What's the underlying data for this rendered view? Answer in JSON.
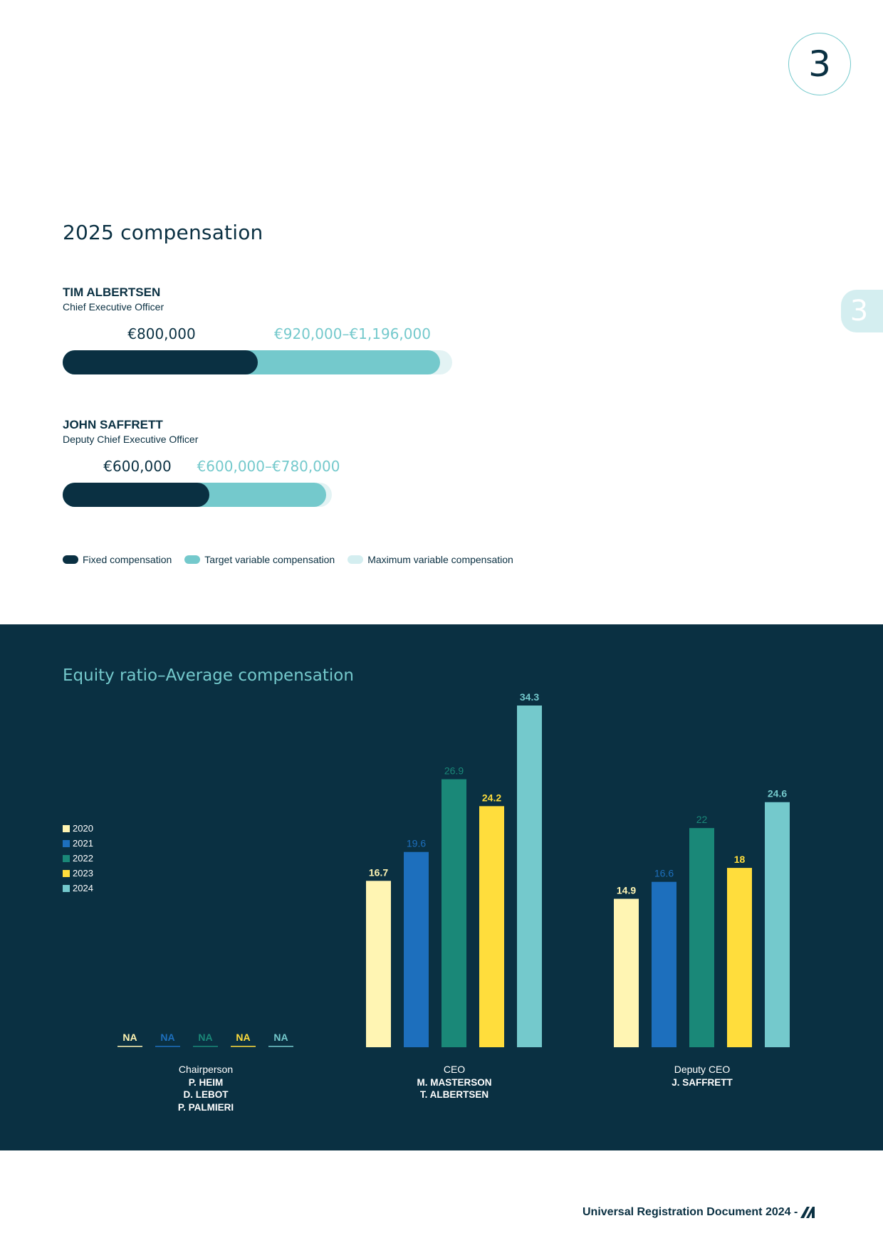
{
  "page": {
    "chapter_number": "3",
    "side_tab_number": "3",
    "footer_text": "Universal Registration Document 2024 -"
  },
  "compensation": {
    "title": "2025 compensation",
    "executives": [
      {
        "name": "TIM ALBERTSEN",
        "role": "Chief Executive Officer",
        "fixed_label": "€800,000",
        "variable_label": "€920,000–€1,196,000",
        "fixed": 800000,
        "target_variable": 920000,
        "max_variable": 1196000
      },
      {
        "name": "JOHN SAFFRETT",
        "role": "Deputy Chief Executive Officer",
        "fixed_label": "€600,000",
        "variable_label": "€600,000–€780,000",
        "fixed": 600000,
        "target_variable": 600000,
        "max_variable": 780000
      }
    ],
    "legend": [
      {
        "label": "Fixed compensation",
        "color": "#0a3042"
      },
      {
        "label": "Target variable compensation",
        "color": "#74c9cc"
      },
      {
        "label": "Maximum variable compensation",
        "color": "#d4eef0"
      }
    ]
  },
  "chart_data": {
    "type": "bar",
    "title": "Equity ratio–Average compensation",
    "categories": [
      "Chairperson",
      "CEO",
      "Deputy CEO"
    ],
    "category_people": [
      [
        "P. HEIM",
        "D. LEBOT",
        "P. PALMIERI"
      ],
      [
        "M. MASTERSON",
        "T. ALBERTSEN"
      ],
      [
        "J. SAFFRETT"
      ]
    ],
    "series": [
      {
        "name": "2020",
        "color": "#fff5b3",
        "values": [
          null,
          16.7,
          14.9
        ],
        "labels": [
          "NA",
          "16.7",
          "14.9"
        ]
      },
      {
        "name": "2021",
        "color": "#1d6fbd",
        "values": [
          null,
          19.6,
          16.6
        ],
        "labels": [
          "NA",
          "19.6",
          "16.6"
        ]
      },
      {
        "name": "2022",
        "color": "#1a8878",
        "values": [
          null,
          26.9,
          22
        ],
        "labels": [
          "NA",
          "26.9",
          "22"
        ]
      },
      {
        "name": "2023",
        "color": "#ffdd3c",
        "values": [
          null,
          24.2,
          18
        ],
        "labels": [
          "NA",
          "24.2",
          "18"
        ]
      },
      {
        "name": "2024",
        "color": "#74c9cc",
        "values": [
          null,
          34.3,
          24.6
        ],
        "labels": [
          "NA",
          "34.3",
          "24.6"
        ]
      }
    ],
    "ylim": [
      0,
      34.3
    ],
    "grid": false,
    "legend_position": "left"
  }
}
